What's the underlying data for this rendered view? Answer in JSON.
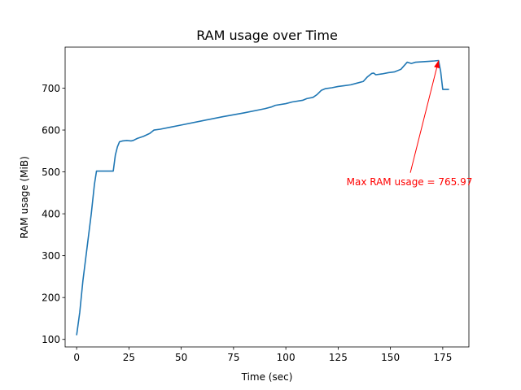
{
  "chart_data": {
    "type": "line",
    "title": "RAM usage over Time",
    "xlabel": "Time (sec)",
    "ylabel": "RAM usage (MiB)",
    "xlim": [
      -5.5,
      187.5
    ],
    "ylim": [
      82,
      798
    ],
    "xticks": [
      0,
      25,
      50,
      75,
      100,
      125,
      150,
      175
    ],
    "yticks": [
      100,
      200,
      300,
      400,
      500,
      600,
      700
    ],
    "grid": false,
    "series": [
      {
        "color": "#1f77b4",
        "points": [
          [
            0,
            110
          ],
          [
            1.5,
            165
          ],
          [
            3,
            240
          ],
          [
            5,
            320
          ],
          [
            7,
            400
          ],
          [
            8.5,
            470
          ],
          [
            9.5,
            502
          ],
          [
            12,
            502
          ],
          [
            15,
            502
          ],
          [
            17.5,
            502
          ],
          [
            18.5,
            540
          ],
          [
            19.5,
            560
          ],
          [
            20.5,
            572
          ],
          [
            22,
            574
          ],
          [
            24,
            575
          ],
          [
            26,
            574
          ],
          [
            27,
            575
          ],
          [
            29,
            580
          ],
          [
            32,
            585
          ],
          [
            35,
            592
          ],
          [
            37,
            600
          ],
          [
            40,
            602
          ],
          [
            45,
            607
          ],
          [
            50,
            612
          ],
          [
            60,
            622
          ],
          [
            70,
            632
          ],
          [
            80,
            641
          ],
          [
            90,
            651
          ],
          [
            93,
            655
          ],
          [
            95,
            659
          ],
          [
            100,
            663
          ],
          [
            103,
            667
          ],
          [
            108,
            671
          ],
          [
            110,
            675
          ],
          [
            113,
            678
          ],
          [
            115,
            685
          ],
          [
            117,
            695
          ],
          [
            119,
            699
          ],
          [
            122,
            701
          ],
          [
            125,
            704
          ],
          [
            128,
            706
          ],
          [
            131,
            708
          ],
          [
            134,
            712
          ],
          [
            137,
            716
          ],
          [
            139,
            727
          ],
          [
            141,
            735
          ],
          [
            142,
            736
          ],
          [
            143,
            732
          ],
          [
            146,
            734
          ],
          [
            149,
            737
          ],
          [
            152,
            739
          ],
          [
            155,
            745
          ],
          [
            158,
            762
          ],
          [
            160,
            759
          ],
          [
            162,
            762
          ],
          [
            165,
            763
          ],
          [
            168,
            764
          ],
          [
            171,
            765
          ],
          [
            173,
            765.97
          ],
          [
            174,
            740
          ],
          [
            175,
            697
          ],
          [
            178,
            697
          ]
        ]
      }
    ],
    "annotations": [
      {
        "text": "Max RAM usage = 765.97",
        "color": "#ff0000",
        "point": [
          173,
          765.97
        ],
        "text_anchor_point": [
          159.5,
          498
        ]
      }
    ]
  }
}
